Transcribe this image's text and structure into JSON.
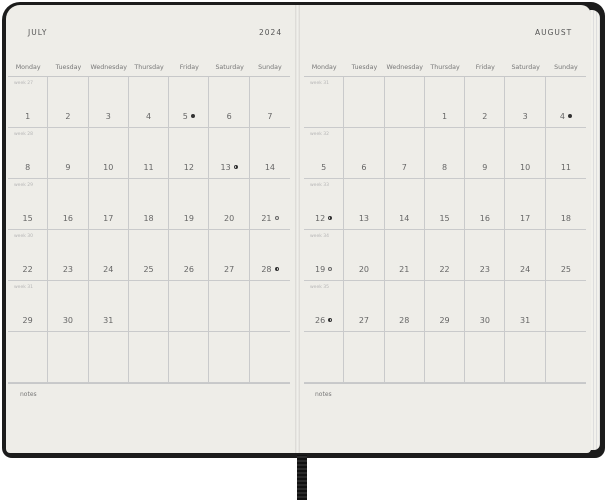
{
  "left_page": {
    "month": "JULY",
    "year": "2024",
    "notes_label": "notes",
    "weekdays": [
      "Monday",
      "Tuesday",
      "Wednesday",
      "Thursday",
      "Friday",
      "Saturday",
      "Sunday"
    ],
    "weeks": [
      {
        "label": "week 27",
        "days": [
          "1",
          "2",
          "3",
          "4",
          "5",
          "6",
          "7"
        ]
      },
      {
        "label": "week 28",
        "days": [
          "8",
          "9",
          "10",
          "11",
          "12",
          "13",
          "14"
        ]
      },
      {
        "label": "week 29",
        "days": [
          "15",
          "16",
          "17",
          "18",
          "19",
          "20",
          "21"
        ]
      },
      {
        "label": "week 30",
        "days": [
          "22",
          "23",
          "24",
          "25",
          "26",
          "27",
          "28"
        ]
      },
      {
        "label": "week 31",
        "days": [
          "29",
          "30",
          "31",
          "",
          "",
          "",
          ""
        ]
      },
      {
        "label": "",
        "days": [
          "",
          "",
          "",
          "",
          "",
          "",
          ""
        ]
      }
    ],
    "moon_phases": {
      "5": "new",
      "13": "first",
      "21": "full",
      "28": "last"
    }
  },
  "right_page": {
    "month": "AUGUST",
    "notes_label": "notes",
    "weekdays": [
      "Monday",
      "Tuesday",
      "Wednesday",
      "Thursday",
      "Friday",
      "Saturday",
      "Sunday"
    ],
    "weeks": [
      {
        "label": "week 31",
        "days": [
          "",
          "",
          "",
          "1",
          "2",
          "3",
          "4"
        ]
      },
      {
        "label": "week 32",
        "days": [
          "5",
          "6",
          "7",
          "8",
          "9",
          "10",
          "11"
        ]
      },
      {
        "label": "week 33",
        "days": [
          "12",
          "13",
          "14",
          "15",
          "16",
          "17",
          "18"
        ]
      },
      {
        "label": "week 34",
        "days": [
          "19",
          "20",
          "21",
          "22",
          "23",
          "24",
          "25"
        ]
      },
      {
        "label": "week 35",
        "days": [
          "26",
          "27",
          "28",
          "29",
          "30",
          "31",
          ""
        ]
      },
      {
        "label": "",
        "days": [
          "",
          "",
          "",
          "",
          "",
          "",
          ""
        ]
      }
    ],
    "moon_phases": {
      "4": "new",
      "12": "first",
      "19": "full",
      "26": "last"
    }
  },
  "colors": {
    "cover": "#1c1c1c",
    "paper": "#eeede8",
    "grid": "#c9cacb"
  }
}
